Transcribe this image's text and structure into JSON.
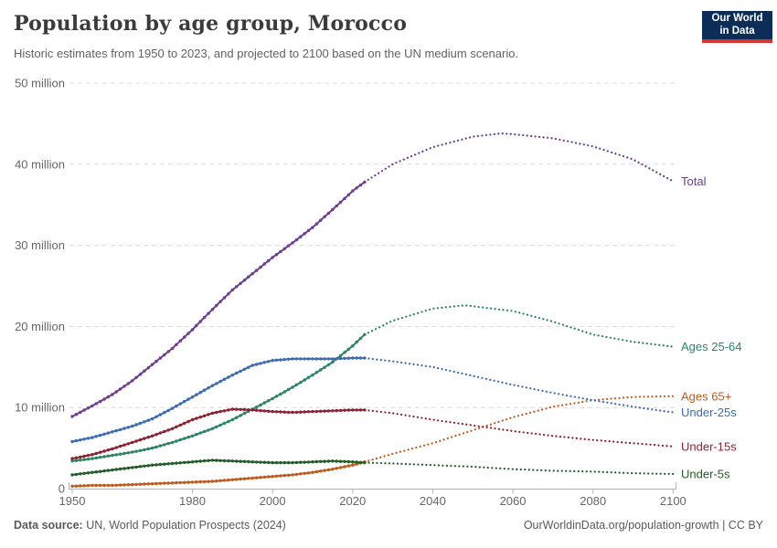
{
  "logo": {
    "line1": "Our World",
    "line2": "in Data",
    "bg_color": "#0d2d59",
    "accent_color": "#d8352e"
  },
  "footer": {
    "source_label": "Data source:",
    "source_value": "UN, World Population Prospects (2024)",
    "link_text": "OurWorldinData.org/population-growth | CC BY"
  },
  "chart_data": {
    "type": "line",
    "title": "Population by age group, Morocco",
    "subtitle": "Historic estimates from 1950 to 2023, and projected to 2100 based on the UN medium scenario.",
    "unit": "million people",
    "grid": true,
    "legend_position": "labels-at-line-ends-right",
    "projection_start_year": 2023,
    "projection_style": "dotted",
    "x_axis": {
      "range": [
        1950,
        2100
      ],
      "ticks": [
        1950,
        1980,
        2000,
        2020,
        2040,
        2060,
        2080,
        2100
      ]
    },
    "y_axis": {
      "range_millions": [
        0,
        50
      ],
      "ticks": [
        {
          "value": 0,
          "label": "0"
        },
        {
          "value": 10,
          "label": "10 million"
        },
        {
          "value": 20,
          "label": "20 million"
        },
        {
          "value": 30,
          "label": "30 million"
        },
        {
          "value": 40,
          "label": "40 million"
        },
        {
          "value": 50,
          "label": "50 million"
        }
      ]
    },
    "series": [
      {
        "name": "Total",
        "color": "#6d3e91",
        "historic": [
          [
            1950,
            8.9
          ],
          [
            1955,
            10.2
          ],
          [
            1960,
            11.6
          ],
          [
            1965,
            13.3
          ],
          [
            1970,
            15.3
          ],
          [
            1975,
            17.3
          ],
          [
            1980,
            19.6
          ],
          [
            1985,
            22.1
          ],
          [
            1990,
            24.5
          ],
          [
            1995,
            26.5
          ],
          [
            2000,
            28.5
          ],
          [
            2005,
            30.3
          ],
          [
            2010,
            32.2
          ],
          [
            2015,
            34.4
          ],
          [
            2020,
            36.7
          ],
          [
            2023,
            37.8
          ]
        ],
        "projected": [
          [
            2023,
            37.8
          ],
          [
            2030,
            40.0
          ],
          [
            2040,
            42.1
          ],
          [
            2050,
            43.4
          ],
          [
            2057,
            43.8
          ],
          [
            2060,
            43.7
          ],
          [
            2070,
            43.2
          ],
          [
            2080,
            42.2
          ],
          [
            2090,
            40.6
          ],
          [
            2100,
            37.9
          ]
        ]
      },
      {
        "name": "Ages 25-64",
        "color": "#2c8465",
        "historic": [
          [
            1950,
            3.4
          ],
          [
            1955,
            3.7
          ],
          [
            1960,
            4.1
          ],
          [
            1965,
            4.5
          ],
          [
            1970,
            5.0
          ],
          [
            1975,
            5.7
          ],
          [
            1980,
            6.5
          ],
          [
            1985,
            7.4
          ],
          [
            1990,
            8.5
          ],
          [
            1995,
            9.8
          ],
          [
            2000,
            11.1
          ],
          [
            2005,
            12.5
          ],
          [
            2010,
            14.0
          ],
          [
            2015,
            15.6
          ],
          [
            2020,
            17.6
          ],
          [
            2023,
            19.0
          ]
        ],
        "projected": [
          [
            2023,
            19.0
          ],
          [
            2030,
            20.7
          ],
          [
            2040,
            22.2
          ],
          [
            2048,
            22.6
          ],
          [
            2060,
            21.9
          ],
          [
            2070,
            20.6
          ],
          [
            2080,
            19.0
          ],
          [
            2090,
            18.1
          ],
          [
            2100,
            17.5
          ]
        ]
      },
      {
        "name": "Ages 65+",
        "color": "#bf5b1d",
        "historic": [
          [
            1950,
            0.3
          ],
          [
            1955,
            0.4
          ],
          [
            1960,
            0.4
          ],
          [
            1965,
            0.5
          ],
          [
            1970,
            0.6
          ],
          [
            1975,
            0.7
          ],
          [
            1980,
            0.8
          ],
          [
            1985,
            0.9
          ],
          [
            1990,
            1.1
          ],
          [
            1995,
            1.3
          ],
          [
            2000,
            1.5
          ],
          [
            2005,
            1.7
          ],
          [
            2010,
            2.0
          ],
          [
            2015,
            2.4
          ],
          [
            2020,
            2.9
          ],
          [
            2023,
            3.3
          ]
        ],
        "projected": [
          [
            2023,
            3.3
          ],
          [
            2030,
            4.3
          ],
          [
            2040,
            5.6
          ],
          [
            2050,
            7.2
          ],
          [
            2060,
            8.8
          ],
          [
            2070,
            10.1
          ],
          [
            2080,
            10.9
          ],
          [
            2090,
            11.3
          ],
          [
            2100,
            11.4
          ]
        ]
      },
      {
        "name": "Under-25s",
        "color": "#3c6bb4",
        "historic": [
          [
            1950,
            5.8
          ],
          [
            1955,
            6.3
          ],
          [
            1960,
            7.0
          ],
          [
            1965,
            7.7
          ],
          [
            1970,
            8.6
          ],
          [
            1975,
            9.9
          ],
          [
            1980,
            11.3
          ],
          [
            1985,
            12.7
          ],
          [
            1990,
            14.0
          ],
          [
            1995,
            15.2
          ],
          [
            2000,
            15.8
          ],
          [
            2005,
            16.0
          ],
          [
            2010,
            16.0
          ],
          [
            2015,
            16.0
          ],
          [
            2020,
            16.1
          ],
          [
            2023,
            16.1
          ]
        ],
        "projected": [
          [
            2023,
            16.1
          ],
          [
            2030,
            15.7
          ],
          [
            2040,
            15.0
          ],
          [
            2050,
            13.9
          ],
          [
            2060,
            12.8
          ],
          [
            2070,
            11.8
          ],
          [
            2080,
            10.9
          ],
          [
            2090,
            10.1
          ],
          [
            2100,
            9.4
          ]
        ]
      },
      {
        "name": "Under-15s",
        "color": "#8c2333",
        "historic": [
          [
            1950,
            3.7
          ],
          [
            1955,
            4.2
          ],
          [
            1960,
            4.9
          ],
          [
            1965,
            5.7
          ],
          [
            1970,
            6.5
          ],
          [
            1975,
            7.4
          ],
          [
            1980,
            8.5
          ],
          [
            1985,
            9.3
          ],
          [
            1990,
            9.8
          ],
          [
            1995,
            9.7
          ],
          [
            2000,
            9.5
          ],
          [
            2005,
            9.4
          ],
          [
            2010,
            9.5
          ],
          [
            2015,
            9.6
          ],
          [
            2020,
            9.7
          ],
          [
            2023,
            9.7
          ]
        ],
        "projected": [
          [
            2023,
            9.7
          ],
          [
            2030,
            9.3
          ],
          [
            2040,
            8.5
          ],
          [
            2050,
            7.8
          ],
          [
            2060,
            7.1
          ],
          [
            2070,
            6.5
          ],
          [
            2080,
            6.0
          ],
          [
            2090,
            5.6
          ],
          [
            2100,
            5.2
          ]
        ]
      },
      {
        "name": "Under-5s",
        "color": "#235c28",
        "historic": [
          [
            1950,
            1.7
          ],
          [
            1955,
            2.0
          ],
          [
            1960,
            2.3
          ],
          [
            1965,
            2.6
          ],
          [
            1970,
            2.9
          ],
          [
            1975,
            3.1
          ],
          [
            1980,
            3.3
          ],
          [
            1985,
            3.5
          ],
          [
            1990,
            3.4
          ],
          [
            1995,
            3.3
          ],
          [
            2000,
            3.2
          ],
          [
            2005,
            3.2
          ],
          [
            2010,
            3.3
          ],
          [
            2015,
            3.4
          ],
          [
            2020,
            3.3
          ],
          [
            2023,
            3.2
          ]
        ],
        "projected": [
          [
            2023,
            3.2
          ],
          [
            2030,
            3.1
          ],
          [
            2040,
            2.9
          ],
          [
            2050,
            2.7
          ],
          [
            2060,
            2.4
          ],
          [
            2070,
            2.2
          ],
          [
            2080,
            2.1
          ],
          [
            2090,
            1.9
          ],
          [
            2100,
            1.8
          ]
        ]
      }
    ]
  }
}
